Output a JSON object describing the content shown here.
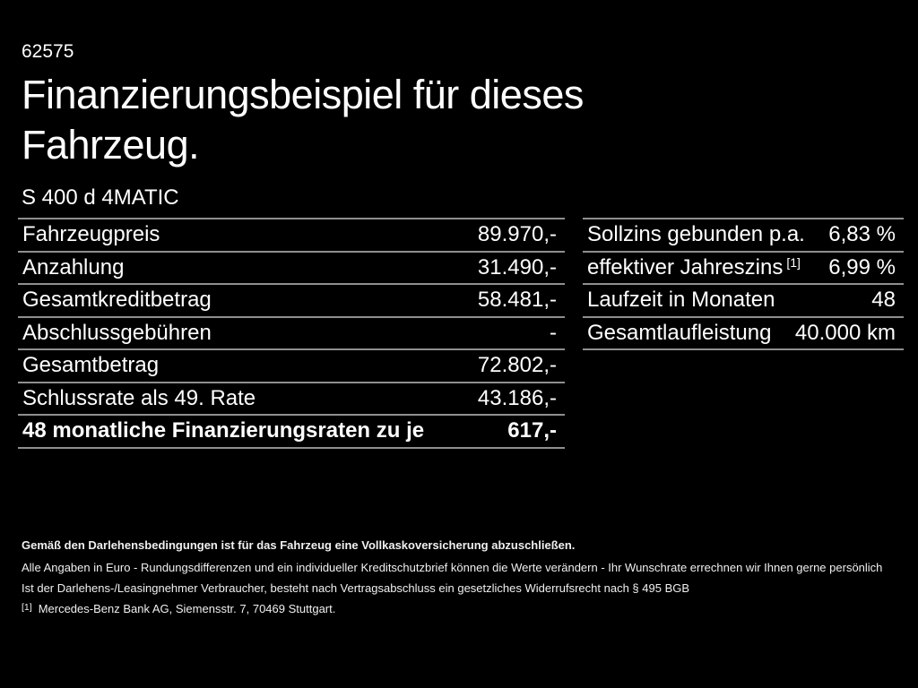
{
  "page": {
    "background_color": "#000000",
    "text_color": "#ffffff",
    "divider_color": "#8f8f8f"
  },
  "header": {
    "doc_number": "62575",
    "title": "Finanzierungsbeispiel für dieses Fahrzeug.",
    "vehicle_model": "S 400 d 4MATIC"
  },
  "finance_table": {
    "rows": [
      {
        "label": "Fahrzeugpreis",
        "value": "89.970,-"
      },
      {
        "label": "Anzahlung",
        "value": "31.490,-"
      },
      {
        "label": "Gesamtkreditbetrag",
        "value": "58.481,-"
      },
      {
        "label": "Abschlussgebühren",
        "value": "-"
      },
      {
        "label": "Gesamtbetrag",
        "value": "72.802,-"
      },
      {
        "label": "Schlussrate als 49. Rate",
        "value": "43.186,-"
      },
      {
        "label": "48 monatliche Finanzierungsraten zu je",
        "value": "617,-"
      }
    ]
  },
  "conditions_table": {
    "rows": [
      {
        "label": "Sollzins gebunden p.a.",
        "sup": "",
        "value": "6,83 %"
      },
      {
        "label": "effektiver Jahreszins",
        "sup": "[1]",
        "value": "6,99 %"
      },
      {
        "label": "Laufzeit in Monaten",
        "sup": "",
        "value": "48"
      },
      {
        "label": "Gesamtlaufleistung",
        "sup": "",
        "value": "40.000 km"
      }
    ]
  },
  "footer": {
    "insurance_note": "Gemäß den Darlehensbedingungen ist für das Fahrzeug eine Vollkaskoversicherung abzuschließen.",
    "disclaimer_line1": "Alle Angaben in Euro - Rundungsdifferenzen und ein individueller Kreditschutzbrief können die Werte verändern - Ihr Wunschrate errechnen wir Ihnen gerne persönlich",
    "disclaimer_line2": "Ist der Darlehens-/Leasingnehmer Verbraucher, besteht nach Vertragsabschluss ein gesetzliches Widerrufsrecht nach § 495 BGB",
    "footnote_marker": "[1]",
    "footnote_text": "Mercedes-Benz Bank AG, Siemensstr. 7, 70469 Stuttgart."
  }
}
